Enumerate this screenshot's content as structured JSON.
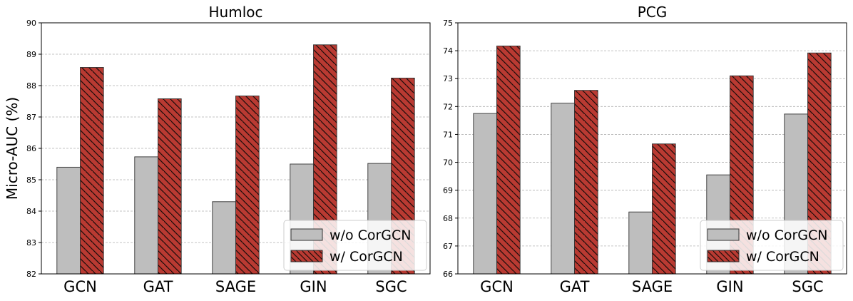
{
  "colors": {
    "without": "#bebebe",
    "with": "#b93a32",
    "edge": "#333333",
    "grid": "#b0b0b0"
  },
  "chart_data": [
    {
      "type": "bar",
      "title": "Humloc",
      "ylabel": "Micro-AUC (%)",
      "xlabel": "",
      "categories": [
        "GCN",
        "GAT",
        "SAGE",
        "GIN",
        "SGC"
      ],
      "ylim": [
        82,
        90
      ],
      "yticks": [
        "82",
        "83",
        "84",
        "85",
        "86",
        "87",
        "88",
        "89",
        "90"
      ],
      "grid": "horizontal-dashed",
      "legend_position": "lower-right",
      "series": [
        {
          "name": "w/o CorGCN",
          "values": [
            85.4,
            85.73,
            84.3,
            85.5,
            85.52
          ]
        },
        {
          "name": "w/ CorGCN",
          "values": [
            88.58,
            87.58,
            87.67,
            89.3,
            88.24
          ]
        }
      ]
    },
    {
      "type": "bar",
      "title": "PCG",
      "ylabel": "",
      "xlabel": "",
      "categories": [
        "GCN",
        "GAT",
        "SAGE",
        "GIN",
        "SGC"
      ],
      "ylim": [
        66,
        75
      ],
      "yticks": [
        "66",
        "67",
        "68",
        "69",
        "70",
        "71",
        "72",
        "73",
        "74",
        "75"
      ],
      "grid": "horizontal-dashed",
      "legend_position": "lower-right",
      "series": [
        {
          "name": "w/o CorGCN",
          "values": [
            71.75,
            72.12,
            68.22,
            69.55,
            71.73
          ]
        },
        {
          "name": "w/ CorGCN",
          "values": [
            74.17,
            72.58,
            70.66,
            73.1,
            73.92
          ]
        }
      ]
    }
  ]
}
